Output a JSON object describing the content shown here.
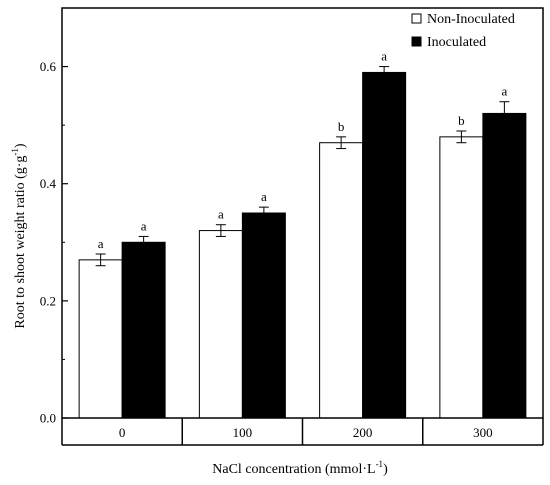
{
  "chart_data": {
    "type": "bar",
    "categories": [
      "0",
      "100",
      "200",
      "300"
    ],
    "series": [
      {
        "name": "Non-Inoculated",
        "fill": "#ffffff",
        "values": [
          0.27,
          0.32,
          0.47,
          0.48
        ],
        "errors": [
          0.01,
          0.01,
          0.01,
          0.01
        ],
        "sig": [
          "a",
          "a",
          "b",
          "b"
        ]
      },
      {
        "name": "Inoculated",
        "fill": "#000000",
        "values": [
          0.3,
          0.35,
          0.59,
          0.52
        ],
        "errors": [
          0.01,
          0.01,
          0.01,
          0.02
        ],
        "sig": [
          "a",
          "a",
          "a",
          "a"
        ]
      }
    ],
    "xlabel": "NaCl concentration (mmol·L",
    "xlabel_sup": "-1",
    "xlabel_end": ")",
    "ylabel": "Root to shoot weight ratio (g·g",
    "ylabel_sup": "-1",
    "ylabel_end": ")",
    "ylim": [
      0,
      0.7
    ],
    "yticks": [
      "0.0",
      "0.2",
      "0.4",
      "0.6"
    ],
    "legend_position": "top-right",
    "grid": false
  }
}
